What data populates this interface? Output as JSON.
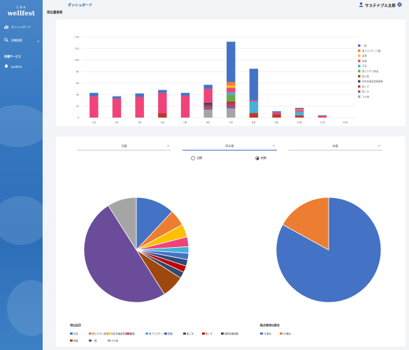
{
  "sidebar": {
    "brand_sub": "CBA",
    "brand_name": "wellfest",
    "items": [
      {
        "label": "ダッシュボード",
        "icon": "dashboard-icon"
      },
      {
        "label": "詳細検索",
        "icon": "search-icon"
      }
    ],
    "section_title": "各種サービス",
    "service_items": [
      {
        "label": "wellfest",
        "icon": "home-icon"
      }
    ]
  },
  "header": {
    "page_title": "ダッシュボード",
    "user_name": "サステナブル太郎",
    "user_icon": "user-icon",
    "settings_icon": "gear-icon"
  },
  "emissions": {
    "section_title": "排出量推移"
  },
  "filters": {
    "tabs": [
      {
        "label": "月間",
        "active": false
      },
      {
        "label": "四半期",
        "active": true
      },
      {
        "label": "年間",
        "active": false
      }
    ],
    "radios": [
      {
        "label": "当期",
        "checked": false
      },
      {
        "label": "前期",
        "checked": true
      }
    ]
  },
  "breakdown": {
    "items_title": "排出品目",
    "bases_title": "拠点毎排出割合"
  },
  "colors": {
    "primary": "#3e6fc4",
    "sidebar_bg": "#3577c0"
  },
  "chart_data": [
    {
      "type": "bar",
      "stacked": true,
      "categories": [
        "1月",
        "2月",
        "3月",
        "4月",
        "5月",
        "6月",
        "7月",
        "8月",
        "9月",
        "10月",
        "11月",
        "12月"
      ],
      "ylim": [
        0,
        140
      ],
      "yticks": [
        0,
        20,
        40,
        60,
        80,
        100,
        120,
        140
      ],
      "grid": true,
      "legend_position": "right",
      "series": [
        {
          "name": "その他",
          "color": "#a5a5a5",
          "values": [
            0,
            0,
            0,
            0,
            0,
            14,
            16,
            0,
            0,
            0,
            0,
            0
          ]
        },
        {
          "name": "紙ごみ",
          "color": "#8c4fa3",
          "values": [
            0,
            0,
            0,
            0,
            0,
            4,
            6,
            0,
            0,
            0,
            0,
            0
          ]
        },
        {
          "name": "紙くず",
          "color": "#c0392b",
          "values": [
            0,
            0,
            0,
            8,
            0,
            4,
            6,
            8,
            6,
            4,
            0,
            0
          ]
        },
        {
          "name": "特定有害産業廃棄物",
          "color": "#36486b",
          "values": [
            0,
            0,
            0,
            0,
            0,
            4,
            0,
            0,
            0,
            0,
            0,
            0
          ]
        },
        {
          "name": "燃え殻",
          "color": "#9b4d18",
          "values": [
            0,
            0,
            0,
            0,
            0,
            0,
            0,
            0,
            0,
            0,
            0,
            0
          ]
        },
        {
          "name": "燃えやすい廃油",
          "color": "#6aa84f",
          "values": [
            0,
            0,
            0,
            0,
            0,
            0,
            12,
            0,
            0,
            0,
            0,
            0
          ]
        },
        {
          "name": "汚泥",
          "color": "#45b0d8",
          "values": [
            0,
            0,
            0,
            0,
            0,
            0,
            4,
            20,
            0,
            6,
            0,
            0
          ]
        },
        {
          "name": "布類",
          "color": "#f0437a",
          "values": [
            37,
            33,
            36,
            35,
            38,
            24,
            8,
            2,
            3,
            3,
            3,
            0
          ]
        },
        {
          "name": "金属",
          "color": "#f7c31b",
          "values": [
            0,
            0,
            0,
            0,
            0,
            0,
            4,
            0,
            0,
            0,
            0,
            0
          ]
        },
        {
          "name": "廃プラスチック類",
          "color": "#ed7d31",
          "values": [
            0,
            0,
            0,
            0,
            0,
            0,
            6,
            0,
            0,
            2,
            0,
            0
          ]
        },
        {
          "name": "一般",
          "color": "#4472c4",
          "values": [
            6,
            4,
            6,
            5,
            5,
            7,
            70,
            55,
            2,
            2,
            1,
            0
          ]
        }
      ]
    },
    {
      "type": "pie",
      "title": "排出品目",
      "categories": [
        "汚泥",
        "燃えやすい廃油",
        "特定有害産業廃棄物",
        "布類",
        "廃プラスチック類",
        "鉄類",
        "紙ごみ",
        "紙くず",
        "廃電気機械器",
        "有機",
        "一般",
        "その他"
      ],
      "colors": [
        "#4472c4",
        "#ed7d31",
        "#ffc000",
        "#f0437a",
        "#45b0d8",
        "#4472c4",
        "#2f4b7c",
        "#c00000",
        "#36486b",
        "#9e480e",
        "#6b4c9a",
        "#a5a5a5"
      ],
      "values": [
        12,
        5,
        4,
        3,
        2,
        2,
        2,
        2,
        2,
        7,
        50,
        9
      ]
    },
    {
      "type": "pie",
      "title": "拠点毎排出割合",
      "categories": [
        "CE東京",
        "CE横浜"
      ],
      "colors": [
        "#4472c4",
        "#ed7d31"
      ],
      "values": [
        83,
        17
      ]
    }
  ]
}
